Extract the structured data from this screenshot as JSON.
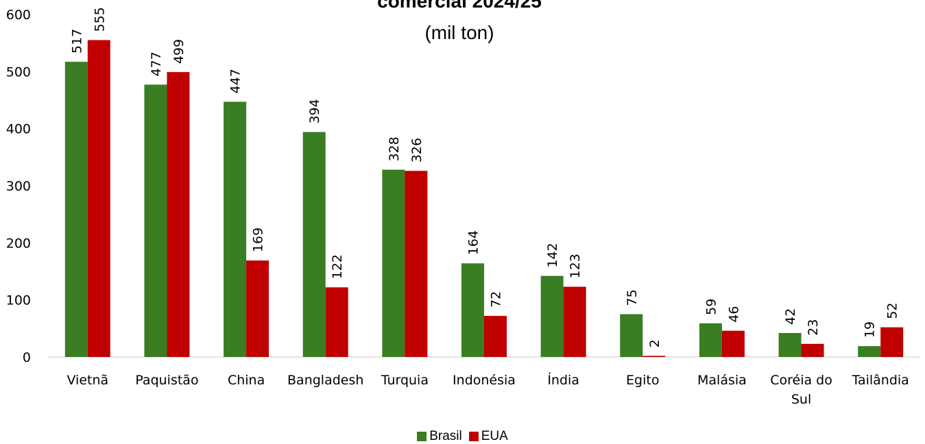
{
  "chart_data": {
    "type": "bar",
    "title": "comercial 2024/25",
    "subtitle": "(mil ton)",
    "categories": [
      "Vietnã",
      "Paquistão",
      "China",
      "Bangladesh",
      "Turquia",
      "Indonésia",
      "Índia",
      "Egito",
      "Malásia",
      "Coréia do Sul",
      "Tailândia"
    ],
    "category_lines": [
      [
        "Vietnã"
      ],
      [
        "Paquistão"
      ],
      [
        "China"
      ],
      [
        "Bangladesh"
      ],
      [
        "Turquia"
      ],
      [
        "Indonésia"
      ],
      [
        "Índia"
      ],
      [
        "Egito"
      ],
      [
        "Malásia"
      ],
      [
        "Coréia do",
        "Sul"
      ],
      [
        "Tailândia"
      ]
    ],
    "series": [
      {
        "name": "Brasil",
        "color": "#3a7d22",
        "values": [
          517,
          477,
          447,
          394,
          328,
          164,
          142,
          75,
          59,
          42,
          19
        ]
      },
      {
        "name": "EUA",
        "color": "#c00000",
        "values": [
          555,
          499,
          169,
          122,
          326,
          72,
          123,
          2,
          46,
          23,
          52
        ]
      }
    ],
    "ylim": [
      0,
      600
    ],
    "yticks": [
      0,
      100,
      200,
      300,
      400,
      500,
      600
    ],
    "grid": false,
    "legend_position": "bottom",
    "data_labels": "rotated-vertical"
  }
}
